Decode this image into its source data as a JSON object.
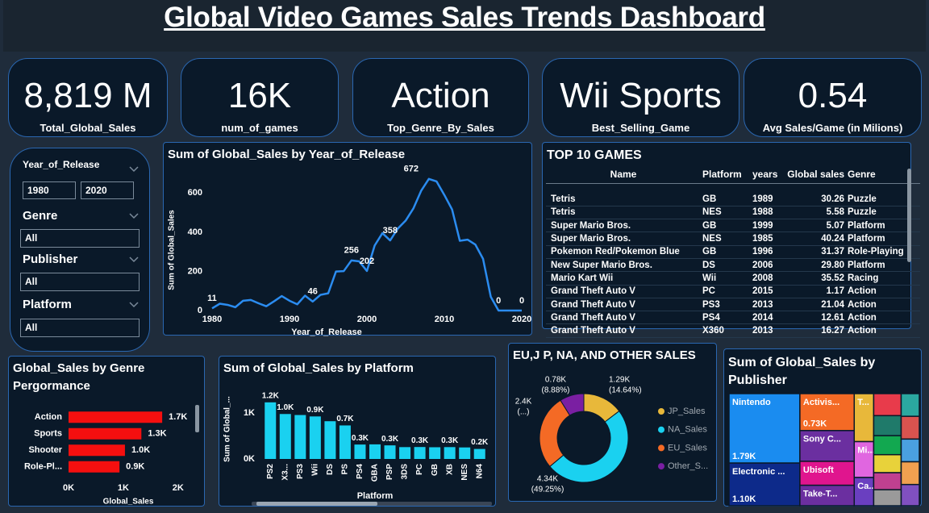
{
  "header": {
    "title": "Global Video Games Sales Trends Dashboard"
  },
  "kpis": [
    {
      "value": "8,819 M",
      "label": "Total_Global_Sales"
    },
    {
      "value": "16K",
      "label": "num_of_games"
    },
    {
      "value": "Action",
      "label": "Top_Genre_By_Sales"
    },
    {
      "value": "Wii Sports",
      "label": "Best_Selling_Game"
    },
    {
      "value": "0.54",
      "label": "Avg Sales/Game (in Milions)"
    }
  ],
  "filters": {
    "year": {
      "label": "Year_of_Release",
      "from": "1980",
      "to": "2020"
    },
    "dropdowns": [
      {
        "label": "Genre",
        "value": "All"
      },
      {
        "label": "Publisher",
        "value": "All"
      },
      {
        "label": "Platform",
        "value": "All"
      }
    ]
  },
  "table": {
    "title": "TOP 10 GAMES",
    "columns": [
      "Name",
      "Platform",
      "years",
      "Global sales",
      "Genre"
    ],
    "rows": [
      [
        "Tetris",
        "GB",
        "1989",
        "30.26",
        "Puzzle"
      ],
      [
        "Tetris",
        "NES",
        "1988",
        "5.58",
        "Puzzle"
      ],
      [
        "Super Mario Bros.",
        "GB",
        "1999",
        "5.07",
        "Platform"
      ],
      [
        "Super Mario Bros.",
        "NES",
        "1985",
        "40.24",
        "Platform"
      ],
      [
        "Pokemon Red/Pokemon Blue",
        "GB",
        "1996",
        "31.37",
        "Role-Playing"
      ],
      [
        "New Super Mario Bros.",
        "DS",
        "2006",
        "29.80",
        "Platform"
      ],
      [
        "Mario Kart Wii",
        "Wii",
        "2008",
        "35.52",
        "Racing"
      ],
      [
        "Grand Theft Auto V",
        "PC",
        "2015",
        "1.17",
        "Action"
      ],
      [
        "Grand Theft Auto V",
        "PS3",
        "2013",
        "21.04",
        "Action"
      ],
      [
        "Grand Theft Auto V",
        "PS4",
        "2014",
        "12.61",
        "Action"
      ],
      [
        "Grand Theft Auto V",
        "X360",
        "2013",
        "16.27",
        "Action"
      ]
    ]
  },
  "chart_data": [
    {
      "type": "line",
      "title": "Sum of Global_Sales by Year_of_Release",
      "x": [
        1980,
        1981,
        1982,
        1983,
        1984,
        1985,
        1986,
        1987,
        1988,
        1989,
        1990,
        1991,
        1992,
        1993,
        1994,
        1995,
        1996,
        1997,
        1998,
        1999,
        2000,
        2001,
        2002,
        2003,
        2004,
        2005,
        2006,
        2007,
        2008,
        2009,
        2010,
        2011,
        2012,
        2013,
        2014,
        2015,
        2016,
        2017,
        2018,
        2019,
        2020
      ],
      "values": [
        11,
        35,
        29,
        17,
        50,
        54,
        37,
        22,
        47,
        74,
        50,
        32,
        76,
        46,
        80,
        88,
        199,
        201,
        256,
        251,
        202,
        332,
        395,
        358,
        419,
        459,
        521,
        611,
        672,
        659,
        590,
        516,
        356,
        362,
        337,
        264,
        70,
        0,
        0,
        0,
        0
      ],
      "value_labels": [
        "11",
        null,
        null,
        null,
        null,
        null,
        null,
        null,
        null,
        null,
        null,
        null,
        null,
        "46",
        null,
        null,
        null,
        null,
        "256",
        null,
        "202",
        null,
        null,
        "358",
        null,
        null,
        null,
        null,
        "672",
        null,
        null,
        null,
        null,
        null,
        null,
        null,
        null,
        "0",
        null,
        null,
        "0"
      ],
      "color": "#2b8cf0",
      "xlim": [
        1980,
        2020
      ],
      "ylim": [
        0,
        700
      ],
      "xticks": [
        1980,
        1990,
        2000,
        2010,
        2020
      ],
      "yticks": [
        0,
        200,
        400,
        600
      ],
      "xlabel": "Year_of_Release",
      "ylabel": "Sum of Global_Sales"
    },
    {
      "type": "hbar",
      "title": "Global_Sales by Genre Pergormance",
      "categories": [
        "Action",
        "Sports",
        "Shooter",
        "Role-Pl..."
      ],
      "values": [
        1710,
        1330,
        1030,
        930
      ],
      "value_labels": [
        "1.7K",
        "1.3K",
        "1.0K",
        "0.9K"
      ],
      "color": "#f50f0f",
      "xlim": [
        0,
        2150
      ],
      "xticks": [
        {
          "value": 0,
          "label": "0K"
        },
        {
          "value": 1000,
          "label": "1K"
        },
        {
          "value": 2000,
          "label": "2K"
        }
      ],
      "xlabel": "Global_Sales"
    },
    {
      "type": "bar",
      "title": "Sum of Global_Sales by Platform",
      "categories": [
        "PS2",
        "X3...",
        "PS3",
        "Wii",
        "DS",
        "PS",
        "PS4",
        "GBA",
        "PSP",
        "3DS",
        "PC",
        "GB",
        "XB",
        "NES",
        "N64"
      ],
      "values": [
        1233,
        979,
        957,
        926,
        822,
        730,
        314,
        318,
        296,
        258,
        260,
        255,
        258,
        251,
        218
      ],
      "value_labels": [
        "1.2K",
        "1.0K",
        null,
        "0.9K",
        null,
        "0.7K",
        "0.3K",
        null,
        "0.3K",
        null,
        "0.3K",
        null,
        "0.3K",
        null,
        "0.2K"
      ],
      "color": "#1ad1f0",
      "ylim": [
        0,
        1300
      ],
      "yticks": [
        {
          "value": 0,
          "label": "0K"
        },
        {
          "value": 1000,
          "label": "1K"
        }
      ],
      "xlabel": "Platform",
      "ylabel": "Sum of Global_..."
    },
    {
      "type": "donut",
      "title": "EU,J P, NA, AND OTHER SALES",
      "categories": [
        "JP_Sales",
        "NA_Sales",
        "EU_Sales",
        "Other_S..."
      ],
      "values": [
        1290,
        4340,
        2400,
        780
      ],
      "value_labels": [
        "1.29K",
        "4.34K",
        "2.4K",
        "0.78K"
      ],
      "percent_labels": [
        "(14.64%)",
        "(49.25%)",
        "(...)",
        "(8.88%)"
      ],
      "colors": [
        "#e8b83a",
        "#1ad1f0",
        "#f46a25",
        "#7a1fa2"
      ]
    },
    {
      "type": "treemap",
      "title": "Sum of Global_Sales by Publisher",
      "categories": [
        "Nintendo",
        "Electronic ...",
        "Activis...",
        "Sony C...",
        "Ubisoft",
        "Take-T...",
        "T...",
        "Mi...",
        "Ca...",
        null,
        null,
        null,
        null,
        null,
        null,
        null,
        null,
        null,
        null,
        null
      ],
      "values": [
        1790,
        1100,
        730,
        607,
        474,
        404,
        340,
        254,
        200,
        220,
        200,
        190,
        180,
        170,
        160,
        150,
        150,
        150,
        150,
        140
      ],
      "value_labels": [
        "1.79K",
        "1.10K",
        "0.73K",
        null,
        null,
        null,
        null,
        null,
        null,
        null,
        null,
        null,
        null,
        null,
        null,
        null,
        null,
        null,
        null,
        null
      ],
      "colors": [
        "#1a8cf0",
        "#0d2a8a",
        "#f46a25",
        "#6b2fa0",
        "#e0158e",
        "#6b2fa0",
        "#e8b83a",
        "#e066e0",
        "#6a3fc0",
        "#e83b4b",
        "#1f7a6a",
        "#12a850",
        "#e8d23a",
        "#c04090",
        "#9a9a9a",
        "#2ba8a0",
        "#d9534f",
        "#4aa0e0",
        "#f0a050",
        "#8050c0"
      ]
    }
  ]
}
